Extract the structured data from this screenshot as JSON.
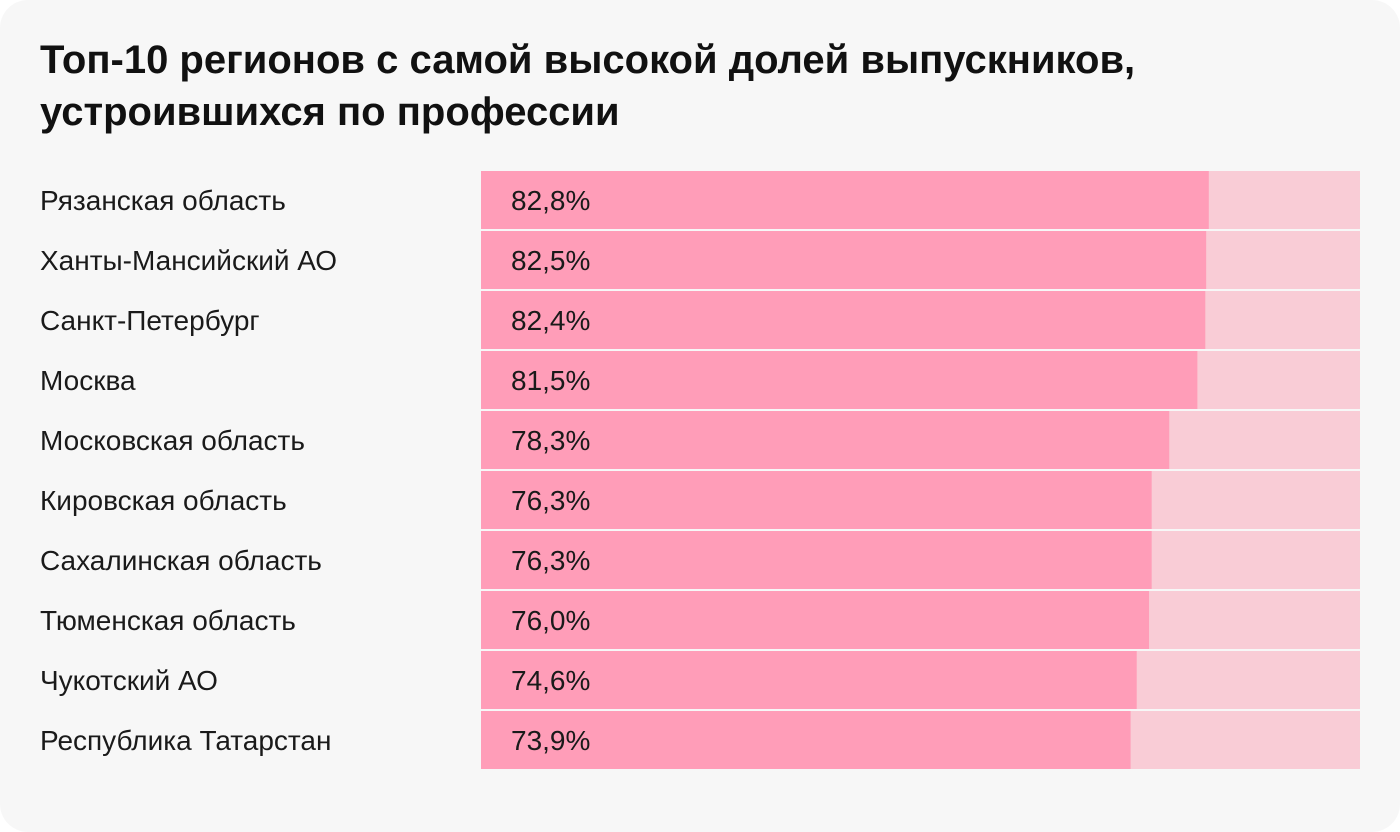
{
  "chart_data": {
    "type": "bar",
    "orientation": "horizontal",
    "title": "Топ-10 регионов с самой высокой долей выпускников,\nустроившихся по профессии",
    "categories": [
      "Рязанская область",
      "Ханты-Мансийский АО",
      "Санкт-Петербург",
      "Москва",
      "Московская область",
      "Кировская область",
      "Сахалинская область",
      "Тюменская область",
      "Чукотский АО",
      "Республика Татарстан"
    ],
    "values": [
      82.8,
      82.5,
      82.4,
      81.5,
      78.3,
      76.3,
      76.3,
      76.0,
      74.6,
      73.9
    ],
    "value_labels": [
      "82,8%",
      "82,5%",
      "82,4%",
      "81,5%",
      "78,3%",
      "76,3%",
      "76,3%",
      "76,0%",
      "74,6%",
      "73,9%"
    ],
    "xlim": [
      0,
      100
    ],
    "grid": false,
    "colors": {
      "bar": "#ff9db8",
      "track": "#f9ccd6",
      "background": "#f7f7f7",
      "text": "#1a1a1a"
    }
  }
}
